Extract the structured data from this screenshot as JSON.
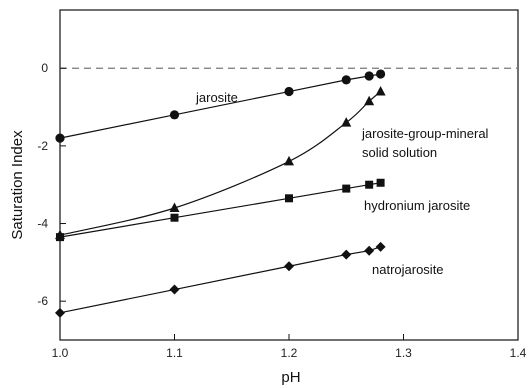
{
  "chart_data": {
    "type": "line",
    "xlabel": "pH",
    "ylabel": "Saturation Index",
    "xlim": [
      1.0,
      1.4
    ],
    "ylim": [
      -7,
      1.5
    ],
    "xticks": [
      "1.0",
      "1.1",
      "1.2",
      "1.3",
      "1.4"
    ],
    "xtick_values": [
      1.0,
      1.1,
      1.2,
      1.3,
      1.4
    ],
    "yticks": [
      "-6",
      "-4",
      "-2",
      "0"
    ],
    "ytick_values": [
      -6,
      -4,
      -2,
      0
    ],
    "reference_line": {
      "y": 0,
      "style": "dashed"
    },
    "grid": false,
    "series": [
      {
        "name": "jarosite",
        "marker": "circle",
        "x": [
          1.0,
          1.1,
          1.2,
          1.25,
          1.27,
          1.28
        ],
        "y": [
          -1.8,
          -1.2,
          -0.6,
          -0.3,
          -0.2,
          -0.15
        ]
      },
      {
        "name": "jarosite-group-mineral\nsolid solution",
        "marker": "triangle",
        "x": [
          1.0,
          1.1,
          1.2,
          1.25,
          1.27,
          1.28
        ],
        "y": [
          -4.3,
          -3.6,
          -2.4,
          -1.4,
          -0.85,
          -0.6
        ]
      },
      {
        "name": "hydronium jarosite",
        "marker": "square",
        "x": [
          1.0,
          1.1,
          1.2,
          1.25,
          1.27,
          1.28
        ],
        "y": [
          -4.35,
          -3.85,
          -3.35,
          -3.1,
          -3.0,
          -2.95
        ]
      },
      {
        "name": "natrojarosite",
        "marker": "diamond",
        "x": [
          1.0,
          1.1,
          1.2,
          1.25,
          1.27,
          1.28
        ],
        "y": [
          -6.3,
          -5.7,
          -5.1,
          -4.8,
          -4.7,
          -4.6
        ]
      }
    ],
    "series_label_lines": [
      [
        "jarosite"
      ],
      [
        "jarosite-group-mineral",
        "solid solution"
      ],
      [
        "hydronium jarosite"
      ],
      [
        "natrojarosite"
      ]
    ]
  }
}
